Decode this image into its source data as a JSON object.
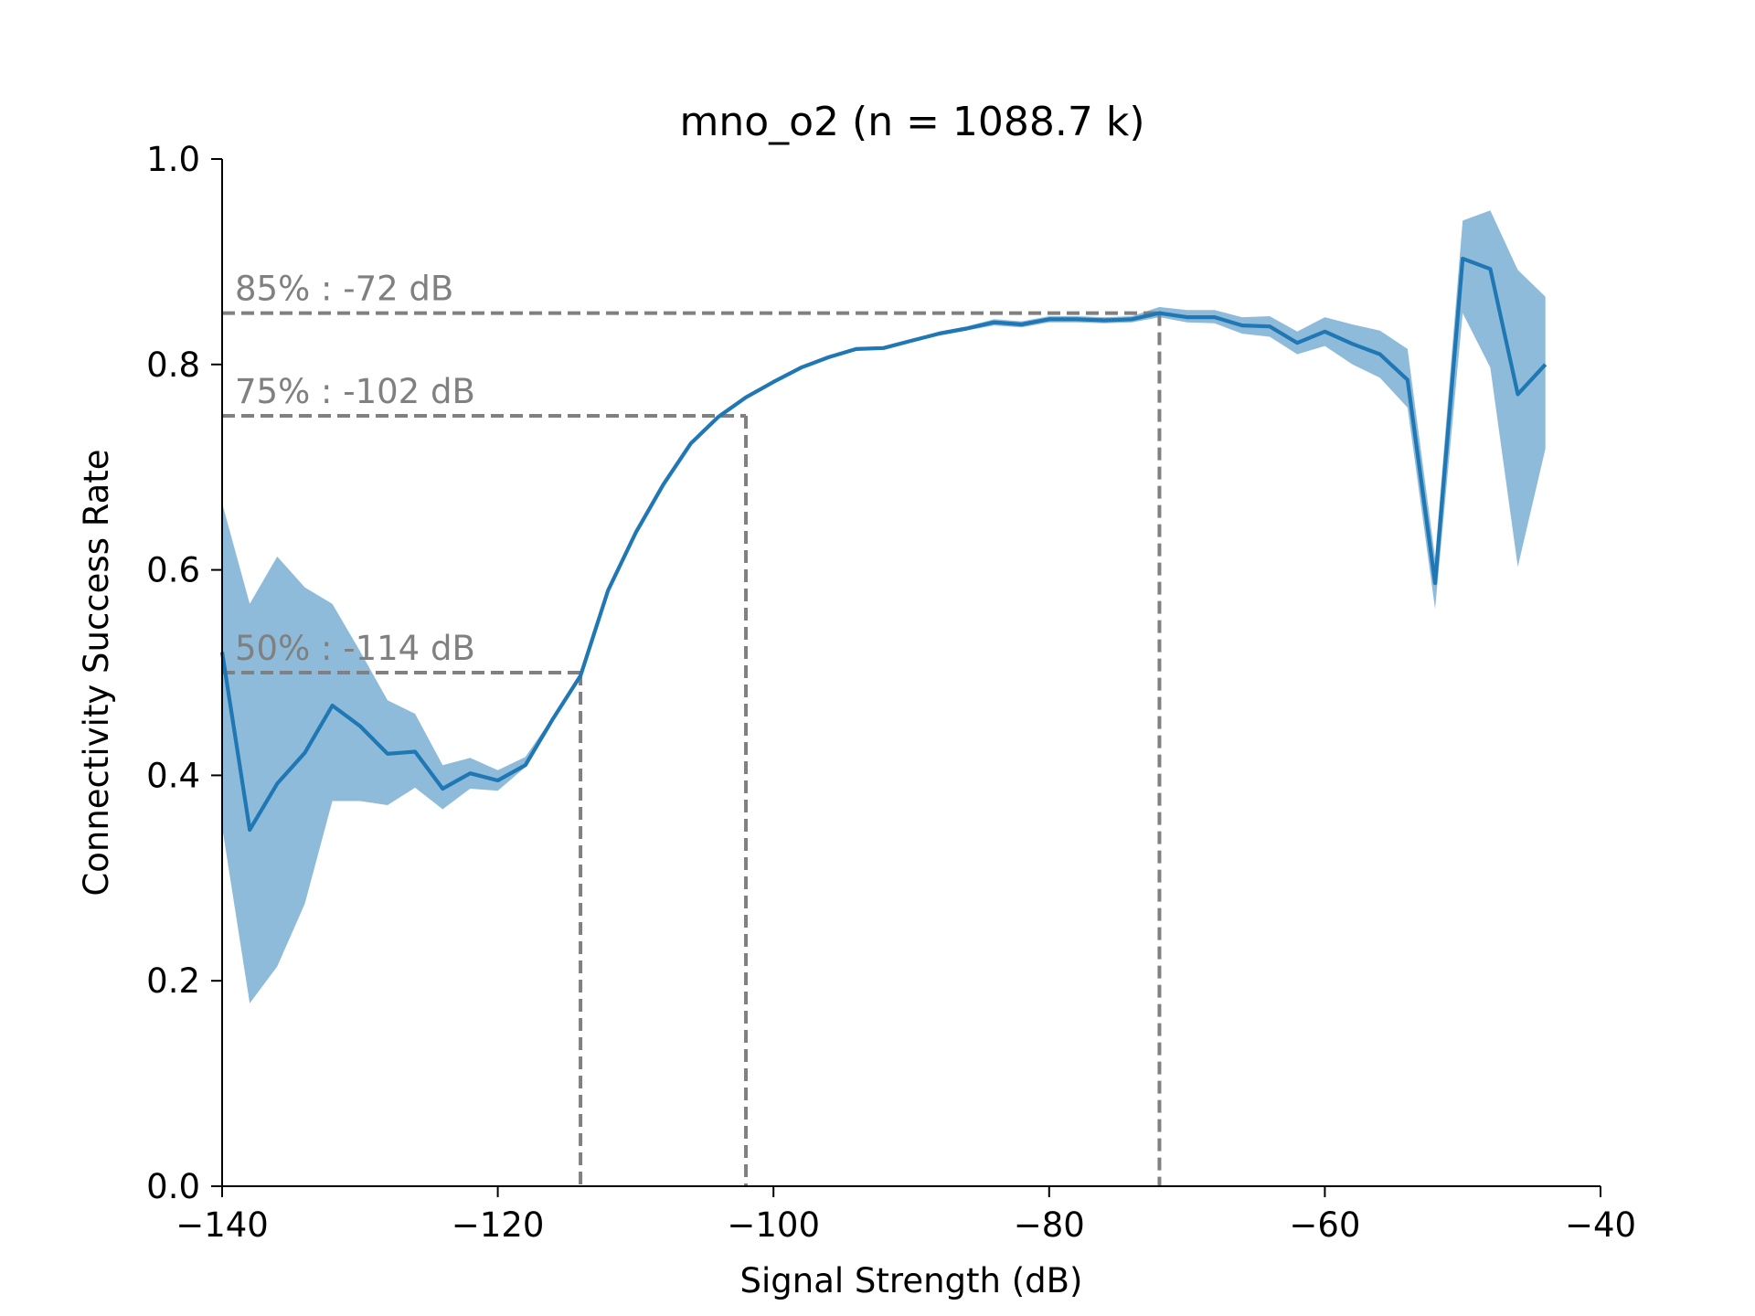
{
  "chart_data": {
    "type": "line",
    "title": "mno_o2 (n = 1088.7 k)",
    "xlabel": "Signal Strength (dB)",
    "ylabel": "Connectivity Success Rate",
    "xlim": [
      -140,
      -40
    ],
    "ylim": [
      0.0,
      1.0
    ],
    "xticks": [
      "−140",
      "−120",
      "−100",
      "−80",
      "−60",
      "−40"
    ],
    "xtick_values": [
      -140,
      -120,
      -100,
      -80,
      -60,
      -40
    ],
    "yticks": [
      "0.0",
      "0.2",
      "0.4",
      "0.6",
      "0.8",
      "1.0"
    ],
    "ytick_values": [
      0.0,
      0.2,
      0.4,
      0.6,
      0.8,
      1.0
    ],
    "grid": false,
    "colors": {
      "line": "#1f77b4",
      "band": "#8fbbdb",
      "threshold": "#808080"
    },
    "series": [
      {
        "x": [
          -140,
          -138,
          -136,
          -134,
          -132,
          -130,
          -128,
          -126,
          -124,
          -122,
          -120,
          -118,
          -116,
          -114,
          -112,
          -110,
          -108,
          -106,
          -104,
          -102,
          -100,
          -98,
          -96,
          -94,
          -92,
          -90,
          -88,
          -86,
          -84,
          -82,
          -80,
          -78,
          -76,
          -74,
          -72,
          -70,
          -68,
          -66,
          -64,
          -62,
          -60,
          -58,
          -56,
          -54,
          -52,
          -50,
          -48,
          -46,
          -44
        ],
        "y": [
          0.52,
          0.347,
          0.392,
          0.422,
          0.468,
          0.448,
          0.421,
          0.423,
          0.387,
          0.402,
          0.395,
          0.41,
          0.455,
          0.497,
          0.58,
          0.636,
          0.683,
          0.723,
          0.749,
          0.768,
          0.783,
          0.797,
          0.807,
          0.815,
          0.816,
          0.823,
          0.83,
          0.835,
          0.841,
          0.839,
          0.844,
          0.844,
          0.843,
          0.844,
          0.85,
          0.846,
          0.846,
          0.838,
          0.837,
          0.821,
          0.832,
          0.82,
          0.81,
          0.785,
          0.587,
          0.903,
          0.893,
          0.771,
          0.8
        ],
        "lower": [
          0.35,
          0.178,
          0.214,
          0.275,
          0.375,
          0.375,
          0.371,
          0.388,
          0.367,
          0.387,
          0.385,
          0.408,
          0.453,
          0.495,
          0.579,
          0.635,
          0.682,
          0.722,
          0.748,
          0.767,
          0.782,
          0.796,
          0.806,
          0.814,
          0.815,
          0.822,
          0.828,
          0.833,
          0.838,
          0.836,
          0.841,
          0.841,
          0.84,
          0.841,
          0.846,
          0.841,
          0.84,
          0.83,
          0.827,
          0.81,
          0.818,
          0.8,
          0.787,
          0.758,
          0.562,
          0.85,
          0.797,
          0.603,
          0.718
        ],
        "upper": [
          0.665,
          0.567,
          0.613,
          0.583,
          0.567,
          0.521,
          0.473,
          0.46,
          0.41,
          0.417,
          0.405,
          0.418,
          0.457,
          0.499,
          0.581,
          0.637,
          0.684,
          0.724,
          0.75,
          0.769,
          0.784,
          0.798,
          0.808,
          0.816,
          0.817,
          0.824,
          0.832,
          0.837,
          0.844,
          0.842,
          0.847,
          0.847,
          0.846,
          0.847,
          0.856,
          0.853,
          0.853,
          0.846,
          0.847,
          0.832,
          0.846,
          0.839,
          0.833,
          0.815,
          0.612,
          0.94,
          0.95,
          0.892,
          0.866
        ]
      }
    ],
    "thresholds": [
      {
        "label": "85% : -72 dB",
        "x": -72,
        "y": 0.85
      },
      {
        "label": "75% : -102 dB",
        "x": -102,
        "y": 0.75
      },
      {
        "label": "50% : -114 dB",
        "x": -114,
        "y": 0.5
      }
    ]
  }
}
